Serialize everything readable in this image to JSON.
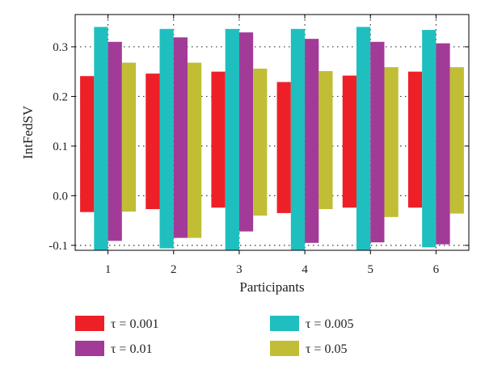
{
  "chart_data": {
    "type": "bar",
    "title": "",
    "xlabel": "Participants",
    "ylabel": "IntFedSV",
    "categories": [
      "1",
      "2",
      "3",
      "4",
      "5",
      "6"
    ],
    "ylim": [
      -0.11,
      0.365
    ],
    "yticks": [
      -0.1,
      0.0,
      0.1,
      0.2,
      0.3
    ],
    "ytick_labels": [
      "-0.1",
      "0.0",
      "0.1",
      "0.2",
      "0.3"
    ],
    "grid": "dotted",
    "legend_position": "bottom",
    "series": [
      {
        "name": "τ = 0.001",
        "color": "#ee2027",
        "ranges": [
          [
            -0.033,
            0.241
          ],
          [
            -0.027,
            0.246
          ],
          [
            -0.024,
            0.25
          ],
          [
            -0.035,
            0.229
          ],
          [
            -0.024,
            0.242
          ],
          [
            -0.024,
            0.25
          ]
        ]
      },
      {
        "name": "τ = 0.005",
        "color": "#1fbfbf",
        "ranges": [
          [
            -0.11,
            0.34
          ],
          [
            -0.106,
            0.336
          ],
          [
            -0.11,
            0.336
          ],
          [
            -0.11,
            0.336
          ],
          [
            -0.11,
            0.34
          ],
          [
            -0.104,
            0.334
          ]
        ]
      },
      {
        "name": "τ = 0.01",
        "color": "#a23b98",
        "ranges": [
          [
            -0.091,
            0.31
          ],
          [
            -0.085,
            0.319
          ],
          [
            -0.072,
            0.329
          ],
          [
            -0.095,
            0.316
          ],
          [
            -0.094,
            0.31
          ],
          [
            -0.098,
            0.307
          ]
        ]
      },
      {
        "name": "τ = 0.05",
        "color": "#c1be35",
        "ranges": [
          [
            -0.032,
            0.268
          ],
          [
            -0.085,
            0.268
          ],
          [
            -0.04,
            0.256
          ],
          [
            -0.027,
            0.251
          ],
          [
            -0.043,
            0.259
          ],
          [
            -0.036,
            0.259
          ]
        ]
      }
    ]
  }
}
